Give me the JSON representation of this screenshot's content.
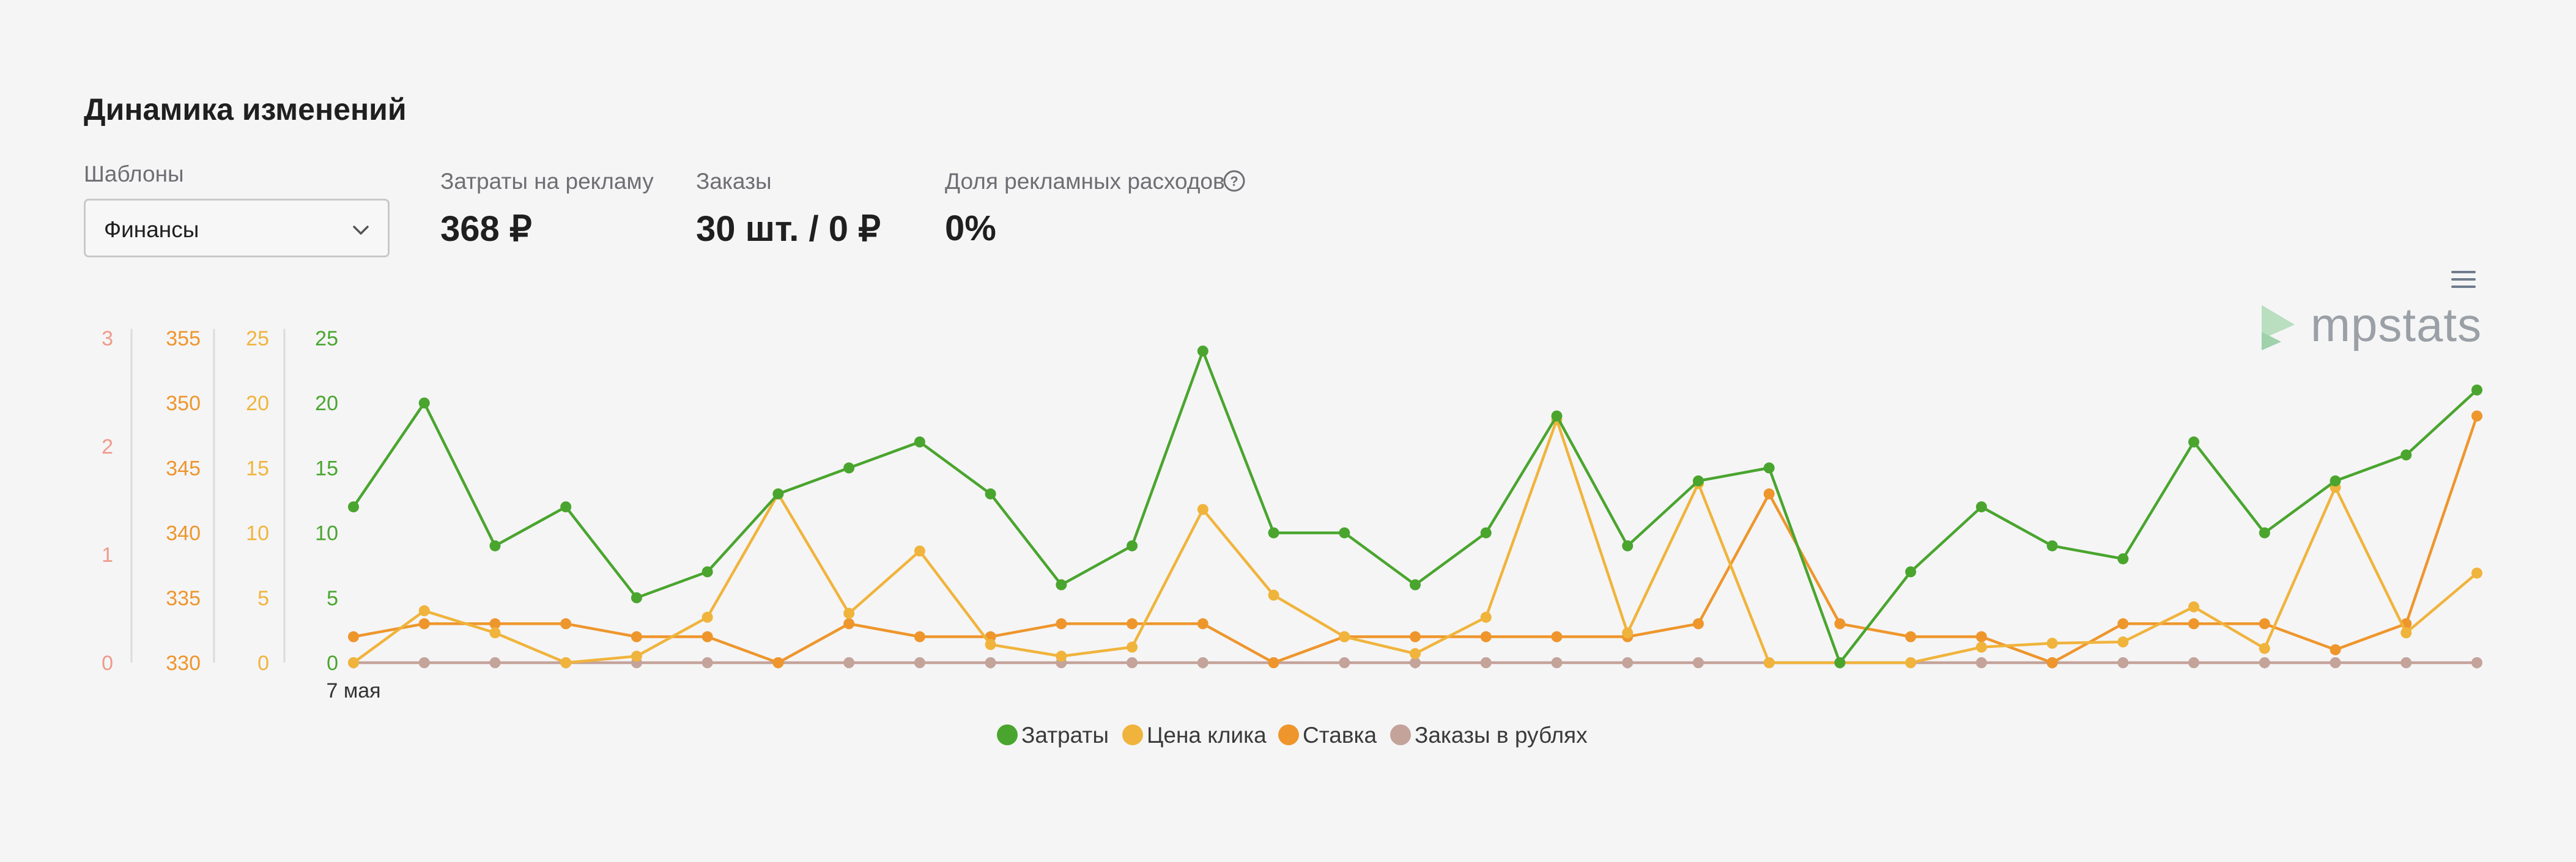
{
  "header": {
    "title": "Динамика изменений"
  },
  "templates": {
    "label": "Шаблоны",
    "selected": "Финансы"
  },
  "stats": [
    {
      "label": "Затраты на рекламу",
      "value": "368 ₽"
    },
    {
      "label": "Заказы",
      "value": "30 шт. / 0 ₽"
    },
    {
      "label": "Доля рекламных расходов",
      "value": "0%"
    }
  ],
  "toolbar": {
    "menu_icon": "hamburger-menu-icon",
    "help_icon": "question-circle-icon"
  },
  "brand": {
    "logo_text": "mpstats",
    "logo_icon": "mpstats-play-logo-icon"
  },
  "colors": {
    "zatraty": "#4aa52e",
    "cena": "#f0b43c",
    "stavka": "#ee962c",
    "zakazy": "#c4a39a"
  },
  "chart_data": {
    "type": "line",
    "x_tick_labels": [
      "7 мая"
    ],
    "y_axes": [
      {
        "ticks": [
          "0",
          "1",
          "2",
          "3"
        ],
        "range": [
          0,
          3
        ]
      },
      {
        "ticks": [
          "330",
          "335",
          "340",
          "345",
          "350",
          "355"
        ],
        "range": [
          330,
          355
        ]
      },
      {
        "ticks": [
          "0",
          "5",
          "10",
          "15",
          "20",
          "25"
        ],
        "range": [
          0,
          25
        ]
      },
      {
        "ticks": [
          "0",
          "5",
          "10",
          "15",
          "20",
          "25"
        ],
        "range": [
          0,
          25
        ]
      }
    ],
    "series": [
      {
        "name": "Затраты",
        "color": "#4aa52e",
        "axis": 3,
        "values": [
          12,
          20,
          9,
          12,
          5,
          7,
          13,
          15,
          17,
          13,
          6,
          9,
          24,
          10,
          10,
          6,
          10,
          19,
          9,
          14,
          15,
          0,
          7,
          12,
          9,
          8,
          17,
          10,
          14,
          16,
          21
        ]
      },
      {
        "name": "Цена клика",
        "color": "#f0b43c",
        "axis": 2,
        "values": [
          0,
          4,
          2.3,
          0,
          0.5,
          3.5,
          13,
          3.8,
          8.6,
          1.4,
          0.5,
          1.2,
          11.8,
          5.2,
          2,
          0.7,
          3.5,
          18.7,
          2.3,
          13.8,
          0,
          0,
          0,
          1.2,
          1.5,
          1.6,
          4.3,
          1.1,
          13.5,
          2.3,
          6.9
        ]
      },
      {
        "name": "Ставка",
        "color": "#ee962c",
        "axis": 1,
        "values": [
          332,
          333,
          333,
          333,
          332,
          332,
          330,
          333,
          332,
          332,
          333,
          333,
          333,
          330,
          332,
          332,
          332,
          332,
          332,
          333,
          343,
          333,
          332,
          332,
          330,
          333,
          333,
          333,
          331,
          333,
          349
        ]
      },
      {
        "name": "Заказы в рублях",
        "color": "#c4a39a",
        "axis": 0,
        "values": [
          0,
          0,
          0,
          0,
          0,
          0,
          0,
          0,
          0,
          0,
          0,
          0,
          0,
          0,
          0,
          0,
          0,
          0,
          0,
          0,
          0,
          0,
          0,
          0,
          0,
          0,
          0,
          0,
          0,
          0,
          0
        ]
      }
    ]
  }
}
